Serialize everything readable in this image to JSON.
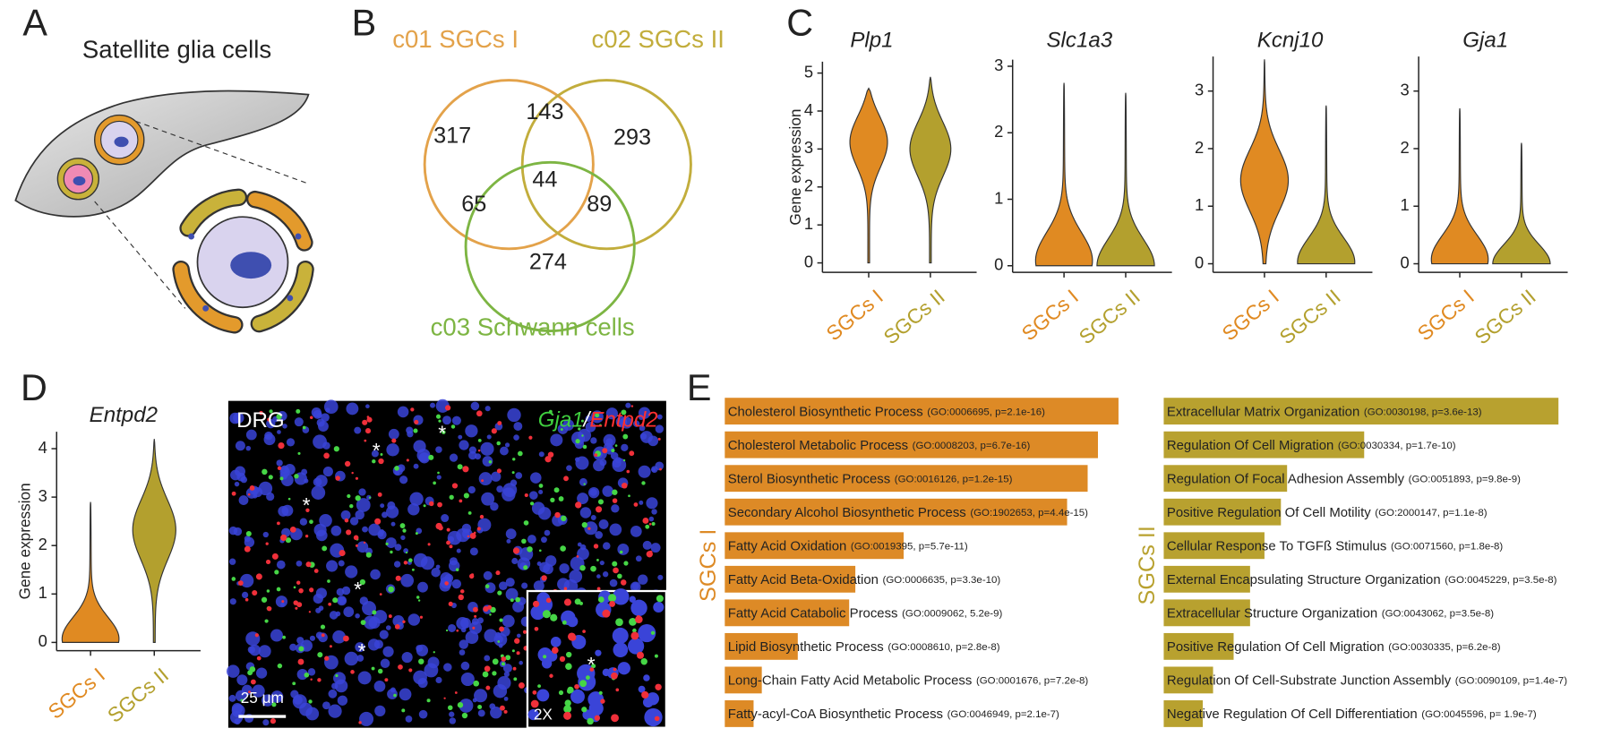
{
  "panel_labels": [
    "A",
    "B",
    "C",
    "D",
    "E"
  ],
  "schematic": {
    "title": "Satellite glia cells"
  },
  "venn": {
    "sets": [
      {
        "name": "c01 SGCs I",
        "color": "#e3a24a"
      },
      {
        "name": "c02 SGCs II",
        "color": "#c2ad3c"
      },
      {
        "name": "c03 Schwann cells",
        "color": "#7db543"
      }
    ],
    "counts": [
      317,
      143,
      293,
      65,
      44,
      89,
      274
    ]
  },
  "image": {
    "label": "DRG",
    "markers": [
      "Gja1",
      "/",
      "Entpd2"
    ],
    "marker_colors": [
      "#3fcf3f",
      "#ffffff",
      "#ff3030"
    ],
    "scale_bar": "25 μm",
    "inset": "2X",
    "asterisk": "*"
  },
  "chart_data": [
    {
      "type": "violin",
      "title": "Plp1",
      "y_label": "Gene expression",
      "categories": [
        "SGCs I",
        "SGCs II"
      ],
      "colors": [
        "#e08a22",
        "#b3a02e"
      ],
      "min": [
        0,
        0
      ],
      "max": [
        4.6,
        4.9
      ],
      "mode": [
        3.3,
        3.1
      ],
      "ylim": [
        -0.25,
        5.3
      ],
      "yticks": [
        0,
        1,
        2,
        3,
        4,
        5
      ]
    },
    {
      "type": "violin",
      "title": "Slc1a3",
      "categories": [
        "SGCs I",
        "SGCs II"
      ],
      "colors": [
        "#e08a22",
        "#b3a02e"
      ],
      "min": [
        0,
        0
      ],
      "max": [
        2.75,
        2.6
      ],
      "mode": [
        0.1,
        0.02
      ],
      "ylim": [
        -0.1,
        3.1
      ],
      "yticks": [
        0,
        1,
        2,
        3
      ]
    },
    {
      "type": "violin",
      "title": "Kcnj10",
      "categories": [
        "SGCs I",
        "SGCs II"
      ],
      "colors": [
        "#e08a22",
        "#b3a02e"
      ],
      "min": [
        0,
        0
      ],
      "max": [
        3.55,
        2.75
      ],
      "mode": [
        1.5,
        0.05
      ],
      "ylim": [
        -0.15,
        3.6
      ],
      "yticks": [
        0,
        1,
        2,
        3
      ]
    },
    {
      "type": "violin",
      "title": "Gja1",
      "categories": [
        "SGCs I",
        "SGCs II"
      ],
      "colors": [
        "#e08a22",
        "#b3a02e"
      ],
      "min": [
        0,
        0
      ],
      "max": [
        2.7,
        2.1
      ],
      "mode": [
        0.1,
        0.02
      ],
      "ylim": [
        -0.15,
        3.6
      ],
      "yticks": [
        0,
        1,
        2,
        3
      ]
    },
    {
      "type": "violin",
      "title": "Entpd2",
      "y_label": "Gene expression",
      "categories": [
        "SGCs I",
        "SGCs II"
      ],
      "colors": [
        "#e08a22",
        "#b3a02e"
      ],
      "min": [
        0,
        0
      ],
      "max": [
        2.9,
        4.2
      ],
      "mode": [
        0.1,
        2.4
      ],
      "ylim": [
        -0.17,
        4.35
      ],
      "yticks": [
        0,
        1,
        2,
        3,
        4
      ]
    },
    {
      "type": "hbar",
      "title": "SGCs I",
      "color": "#dd8a26",
      "xlim": [
        0,
        400
      ],
      "categories": [
        "Cholesterol Biosynthetic Process",
        "Cholesterol Metabolic Process",
        "Sterol Biosynthetic Process",
        "Secondary Alcohol Biosynthetic Process",
        "Fatty Acid Oxidation",
        "Fatty Acid Beta-Oxidation",
        "Fatty Acid Catabolic Process",
        "Lipid Biosynthetic Process",
        "Long-Chain Fatty Acid Metabolic Process",
        "Fatty-acyl-CoA Biosynthetic Process"
      ],
      "details": [
        "(GO:0006695, p=2.1e-16)",
        "(GO:0008203, p=6.7e-16)",
        "(GO:0016126, p=1.2e-15)",
        "(GO:1902653, p=4.4e-15)",
        "(GO:0019395, p=5.7e-11)",
        "(GO:0006635, p=3.3e-10)",
        "(GO:0009062, 5.2e-9)",
        "(GO:0008610, p=2.8e-8)",
        "(GO:0001676, p=7.2e-8)",
        "(GO:0046949, p=2.1e-7)"
      ],
      "values": [
        383,
        363,
        353,
        333,
        174,
        127,
        121,
        71,
        36,
        28
      ]
    },
    {
      "type": "hbar",
      "title": "SGCs II",
      "color": "#b8a12f",
      "xlim": [
        0,
        400
      ],
      "categories": [
        "Extracellular Matrix Organization",
        "Regulation Of Cell Migration",
        "Regulation Of Focal Adhesion Assembly",
        "Positive Regulation Of Cell Motility",
        "Cellular Response To TGFß Stimulus",
        "External Encapsulating Structure Organization",
        "Extracellular Structure Organization",
        "Positive Regulation Of Cell Migration",
        "Regulation Of Cell-Substrate Junction Assembly",
        "Negative Regulation Of Cell Differentiation"
      ],
      "details": [
        "(GO:0030198, p=3.6e-13)",
        "(GO:0030334, p=1.7e-10)",
        "(GO:0051893, p=9.8e-9)",
        "(GO:2000147, p=1.1e-8)",
        "(GO:0071560, p=1.8e-8)",
        "(GO:0045229, p=3.5e-8)",
        "(GO:0043062, p=3.5e-8)",
        "(GO:0030335, p=6.2e-8)",
        "(GO:0090109, p=1.4e-7)",
        "(GO:0045596, p= 1.9e-7)"
      ],
      "values": [
        384,
        195,
        120,
        114,
        98,
        84,
        84,
        68,
        48,
        38
      ]
    }
  ]
}
